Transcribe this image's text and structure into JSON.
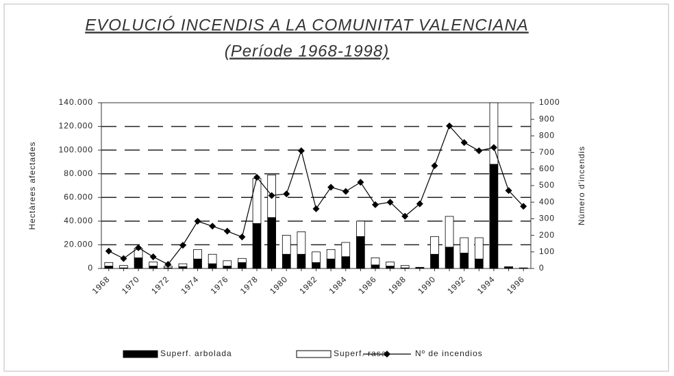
{
  "chart_data": {
    "type": "bar-line",
    "title": "EVOLUCIÓ INCENDIS A LA COMUNITAT VALENCIANA",
    "subtitle": "(Període 1968-1998)",
    "y_label": "Hectàrees afectades",
    "y2_label": "Número d'incendis",
    "categories": [
      "1968",
      null,
      "1970",
      null,
      "1972",
      null,
      "1974",
      null,
      "1976",
      null,
      "1978",
      null,
      "1980",
      null,
      "1982",
      null,
      "1984",
      null,
      "1986",
      null,
      "1988",
      null,
      "1990",
      null,
      "1992",
      null,
      "1994",
      null,
      "1996"
    ],
    "series": [
      {
        "name": "Superf. arbolada",
        "color": "#000000",
        "stack": true,
        "values": [
          2000,
          500,
          9000,
          2000,
          500,
          1500,
          8000,
          4000,
          2000,
          5000,
          38000,
          43000,
          12000,
          12000,
          5000,
          8000,
          10000,
          27000,
          3000,
          2000,
          500,
          500,
          12000,
          18000,
          13000,
          8000,
          88000,
          1000,
          200
        ]
      },
      {
        "name": "Superf. rasa",
        "color": "#ffffff",
        "stack": true,
        "values": [
          3000,
          2000,
          8000,
          3500,
          1500,
          2500,
          8000,
          8000,
          4500,
          3500,
          38000,
          36000,
          16000,
          19000,
          9000,
          8000,
          12000,
          13000,
          6000,
          3500,
          2000,
          500,
          15000,
          26000,
          13000,
          18000,
          52000,
          500,
          300
        ]
      },
      {
        "name": "Nº de incendios",
        "color": "#000000",
        "axis": "y2",
        "values": [
          105,
          60,
          125,
          70,
          25,
          140,
          285,
          255,
          225,
          190,
          550,
          440,
          450,
          710,
          360,
          490,
          465,
          520,
          385,
          400,
          315,
          390,
          620,
          860,
          760,
          710,
          730,
          470,
          375
        ]
      }
    ],
    "ylim": [
      0,
      140000
    ],
    "yticks": [
      0,
      {
        "value": 20000,
        "label": "20.000"
      },
      {
        "value": 40000,
        "label": "40.000"
      },
      {
        "value": 60000,
        "label": "60.000"
      },
      {
        "value": 80000,
        "label": "80.000"
      },
      {
        "value": 100000,
        "label": "100.000"
      },
      {
        "value": 120000,
        "label": "120.000"
      },
      {
        "value": 140000,
        "label": "140.000"
      }
    ],
    "y2lim": [
      0,
      1000
    ],
    "y2ticks": [
      0,
      100,
      200,
      300,
      400,
      500,
      600,
      700,
      800,
      900,
      1000
    ],
    "grid": true,
    "legend": "bottom"
  }
}
